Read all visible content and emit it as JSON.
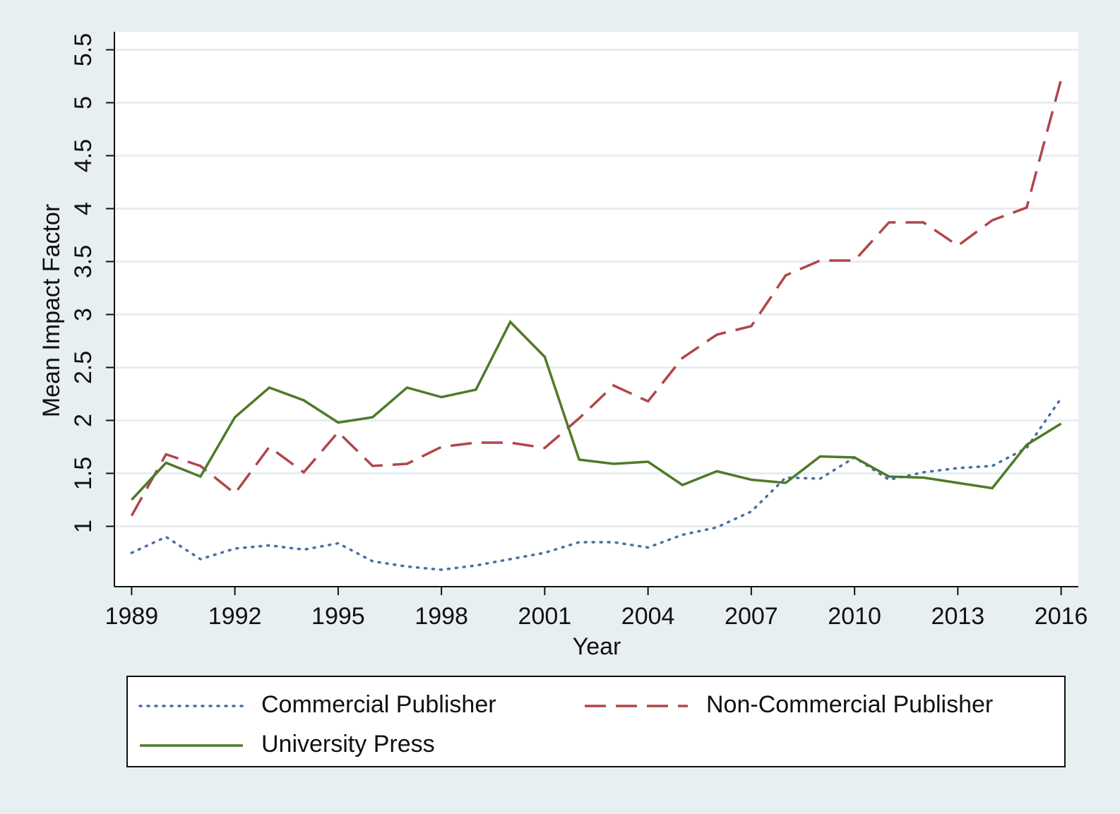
{
  "chart_data": {
    "type": "line",
    "x_label": "Year",
    "y_label": "Mean Impact Factor",
    "x": [
      1989,
      1990,
      1991,
      1992,
      1993,
      1994,
      1995,
      1996,
      1997,
      1998,
      1999,
      2000,
      2001,
      2002,
      2003,
      2004,
      2005,
      2006,
      2007,
      2008,
      2009,
      2010,
      2011,
      2012,
      2013,
      2014,
      2015,
      2016
    ],
    "series": [
      {
        "name": "Commercial Publisher",
        "color": "#4a6fa5",
        "style": "dotted",
        "values": [
          0.75,
          0.9,
          0.69,
          0.79,
          0.82,
          0.78,
          0.84,
          0.67,
          0.62,
          0.59,
          0.63,
          0.69,
          0.75,
          0.85,
          0.85,
          0.8,
          0.92,
          0.99,
          1.14,
          1.46,
          1.45,
          1.65,
          1.44,
          1.51,
          1.55,
          1.57,
          1.74,
          2.21
        ]
      },
      {
        "name": "Non-Commercial Publisher",
        "color": "#b0464a",
        "style": "dashed",
        "values": [
          1.1,
          1.68,
          1.57,
          1.31,
          1.75,
          1.51,
          1.89,
          1.57,
          1.59,
          1.75,
          1.79,
          1.79,
          1.74,
          2.02,
          2.33,
          2.18,
          2.59,
          2.81,
          2.89,
          3.37,
          3.51,
          3.51,
          3.87,
          3.87,
          3.65,
          3.89,
          4.01,
          5.22
        ]
      },
      {
        "name": "University Press",
        "color": "#4f7a28",
        "style": "solid",
        "values": [
          1.25,
          1.6,
          1.47,
          2.03,
          2.31,
          2.19,
          1.98,
          2.03,
          2.31,
          2.22,
          2.29,
          2.93,
          2.6,
          1.63,
          1.59,
          1.61,
          1.39,
          1.52,
          1.44,
          1.41,
          1.66,
          1.65,
          1.47,
          1.46,
          1.41,
          1.36,
          1.77,
          1.97
        ]
      }
    ],
    "xlim": [
      1988.5,
      2016.5
    ],
    "xticks": [
      1989,
      1992,
      1995,
      1998,
      2001,
      2004,
      2007,
      2010,
      2013,
      2016
    ],
    "ylim": [
      0.43,
      5.67
    ],
    "yticks": [
      1,
      1.5,
      2,
      2.5,
      3,
      3.5,
      4,
      4.5,
      5,
      5.5
    ],
    "grid": true,
    "legend": "bottom"
  }
}
